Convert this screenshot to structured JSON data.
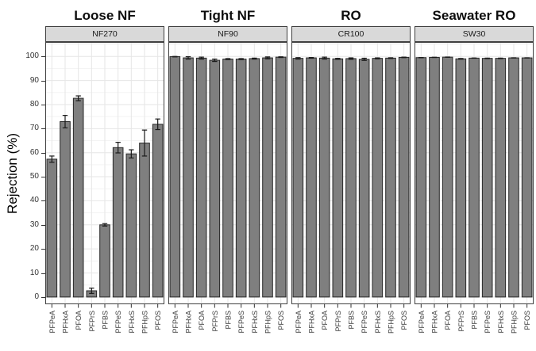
{
  "chart_data": {
    "type": "bar",
    "title": "",
    "ylabel": "Rejection (%)",
    "xlabel": "",
    "ylim": [
      0,
      100
    ],
    "yticks": [
      0,
      10,
      20,
      30,
      40,
      50,
      60,
      70,
      80,
      90,
      100
    ],
    "grid": "major and minor horizontal, major vertical per category",
    "legend": "none",
    "error_bars": true,
    "categories": [
      "PFPeA",
      "PFHxA",
      "PFOA",
      "PFPrS",
      "PFBS",
      "PFPeS",
      "PFHxS",
      "PFHpS",
      "PFOS"
    ],
    "panels": [
      {
        "title": "Loose NF",
        "strip": "NF270",
        "values": [
          57.3,
          72.9,
          82.6,
          2.6,
          30.0,
          62.1,
          59.5,
          64.0,
          71.8
        ],
        "errors": [
          1.3,
          2.6,
          1.0,
          1.1,
          0.5,
          2.2,
          1.7,
          5.4,
          2.2
        ]
      },
      {
        "title": "Tight NF",
        "strip": "NF90",
        "values": [
          99.9,
          99.4,
          99.3,
          98.4,
          98.9,
          98.9,
          99.1,
          99.4,
          99.7
        ],
        "errors": [
          0.1,
          0.5,
          0.4,
          0.5,
          0.2,
          0.2,
          0.2,
          0.4,
          0.15
        ]
      },
      {
        "title": "RO",
        "strip": "CR100",
        "values": [
          99.2,
          99.4,
          99.3,
          99.0,
          99.1,
          98.8,
          99.2,
          99.3,
          99.6
        ],
        "errors": [
          0.3,
          0.15,
          0.4,
          0.2,
          0.3,
          0.45,
          0.2,
          0.15,
          0.1
        ]
      },
      {
        "title": "Seawater RO",
        "strip": "SW30",
        "values": [
          99.5,
          99.6,
          99.7,
          99.0,
          99.3,
          99.2,
          99.2,
          99.4,
          99.4
        ],
        "errors": [
          0.05,
          0.05,
          0.05,
          0.15,
          0.05,
          0.1,
          0.1,
          0.05,
          0.05
        ]
      }
    ],
    "colors": {
      "bar_fill": "#7f7f7f",
      "bar_stroke": "#262626",
      "error_bar": "#1a1a1a",
      "strip_bg": "#d9d9d9",
      "strip_border": "#404040",
      "panel_border": "#404040",
      "grid_major": "#e6e6e6",
      "grid_minor": "#f3f3f3",
      "tick_label": "#333333",
      "x_tick_label": "#404040",
      "axis_title": "#000000",
      "background": "#ffffff"
    }
  }
}
